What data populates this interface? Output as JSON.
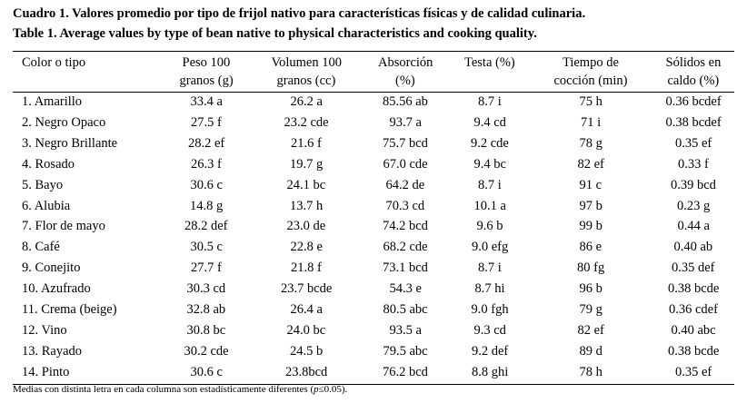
{
  "title": {
    "line1": "Cuadro 1. Valores promedio por tipo de frijol nativo para características físicas y de calidad culinaria.",
    "line2": "Table 1. Average values by type of bean native to physical characteristics and cooking quality."
  },
  "table": {
    "header": [
      [
        "Color o tipo"
      ],
      [
        "Peso 100",
        "granos (g)"
      ],
      [
        "Volumen 100",
        "granos (cc)"
      ],
      [
        "Absorción",
        "(%)"
      ],
      [
        "Testa (%)"
      ],
      [
        "Tiempo de",
        "cocción (min)"
      ],
      [
        "Sólidos en",
        "caldo (%)"
      ]
    ],
    "rows": [
      [
        "1. Amarillo",
        "33.4 a",
        "26.2 a",
        "85.56 ab",
        "8.7 i",
        "75 h",
        "0.36 bcdef"
      ],
      [
        "2. Negro Opaco",
        "27.5 f",
        "23.2 cde",
        "93.7 a",
        "9.4 cd",
        "71 i",
        "0.38 bcdef"
      ],
      [
        "3. Negro Brillante",
        "28.2 ef",
        "21.6 f",
        "75.7 bcd",
        "9.2 cde",
        "78 g",
        "0.35 ef"
      ],
      [
        "4. Rosado",
        "26.3 f",
        "19.7 g",
        "67.0 cde",
        "9.4 bc",
        "82 ef",
        "0.33 f"
      ],
      [
        "5. Bayo",
        "30.6 c",
        "24.1 bc",
        "64.2 de",
        "8.7 i",
        "91 c",
        "0.39 bcd"
      ],
      [
        "6. Alubia",
        "14.8 g",
        "13.7 h",
        "70.3 cd",
        "10.1 a",
        "97 b",
        "0.23 g"
      ],
      [
        "7. Flor de mayo",
        "28.2 def",
        "23.0 de",
        "74.2 bcd",
        "9.6 b",
        "99 b",
        "0.44 a"
      ],
      [
        "8. Café",
        "30.5 c",
        "22.8 e",
        "68.2 cde",
        "9.0 efg",
        "86 e",
        "0.40 ab"
      ],
      [
        "9. Conejito",
        "27.7 f",
        "21.8 f",
        "73.1 bcd",
        "8.7 i",
        "80 fg",
        "0.35 def"
      ],
      [
        "10. Azufrado",
        "30.3 cd",
        "23.7 bcde",
        "54.3 e",
        "8.7 hi",
        "96 b",
        "0.38 bcde"
      ],
      [
        "11. Crema (beige)",
        "32.8 ab",
        "26.4 a",
        "80.5 abc",
        "9.0 fgh",
        "79 g",
        "0.36 cdef"
      ],
      [
        "12. Vino",
        "30.8 bc",
        "24.0 bc",
        "93.5 a",
        "9.3 cd",
        "82 ef",
        "0.40 abc"
      ],
      [
        "13. Rayado",
        "30.2 cde",
        "24.5 b",
        "79.5 abc",
        "9.2 def",
        "89 d",
        "0.38 bcde"
      ],
      [
        "14. Pinto",
        "30.6 c",
        "23.8bcd",
        "76.2 bcd",
        "8.8 ghi",
        "78 h",
        "0.35 ef"
      ]
    ]
  },
  "footnote": {
    "before": "Medias con distinta letra en cada columna son estadísticamente diferentes (",
    "italic": "p",
    "after": "≤0.05)."
  }
}
